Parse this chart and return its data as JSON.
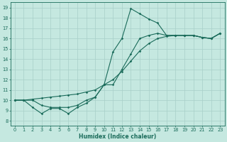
{
  "xlabel": "Humidex (Indice chaleur)",
  "background_color": "#c5e8e0",
  "line_color": "#1a6b5a",
  "grid_color": "#a8cfc8",
  "xlim": [
    -0.5,
    23.5
  ],
  "ylim": [
    7.5,
    19.5
  ],
  "xticks": [
    0,
    1,
    2,
    3,
    4,
    5,
    6,
    7,
    8,
    9,
    10,
    11,
    12,
    13,
    14,
    15,
    16,
    17,
    18,
    19,
    20,
    21,
    22,
    23
  ],
  "yticks": [
    8,
    9,
    10,
    11,
    12,
    13,
    14,
    15,
    16,
    17,
    18,
    19
  ],
  "line1_x": [
    0,
    1,
    2,
    3,
    4,
    5,
    6,
    7,
    8,
    9,
    10,
    11,
    12,
    13,
    14,
    15,
    16,
    17,
    18,
    19,
    20,
    21,
    22,
    23
  ],
  "line1_y": [
    10,
    10,
    9.3,
    8.7,
    9.2,
    9.2,
    8.7,
    9.3,
    9.7,
    10.3,
    11.5,
    14.7,
    16.0,
    18.9,
    18.4,
    17.9,
    17.5,
    16.3,
    16.3,
    16.3,
    16.3,
    16.1,
    16.0,
    16.5
  ],
  "line2_x": [
    0,
    1,
    2,
    3,
    4,
    5,
    6,
    7,
    8,
    9,
    10,
    11,
    12,
    13,
    14,
    15,
    16,
    17,
    18,
    19,
    20,
    21,
    22,
    23
  ],
  "line2_y": [
    10,
    10,
    10.1,
    10.2,
    10.3,
    10.4,
    10.5,
    10.6,
    10.8,
    11.0,
    11.5,
    12.0,
    12.8,
    13.8,
    14.8,
    15.5,
    16.0,
    16.2,
    16.3,
    16.3,
    16.3,
    16.1,
    16.0,
    16.5
  ],
  "line3_x": [
    0,
    1,
    2,
    3,
    4,
    5,
    6,
    7,
    8,
    9,
    10,
    11,
    12,
    13,
    14,
    15,
    16,
    17,
    18,
    19,
    20,
    21,
    22,
    23
  ],
  "line3_y": [
    10,
    10,
    10.0,
    9.5,
    9.3,
    9.3,
    9.3,
    9.5,
    10.0,
    10.3,
    11.5,
    11.5,
    13.0,
    14.5,
    16.0,
    16.3,
    16.5,
    16.3,
    16.3,
    16.3,
    16.3,
    16.1,
    16.0,
    16.5
  ]
}
